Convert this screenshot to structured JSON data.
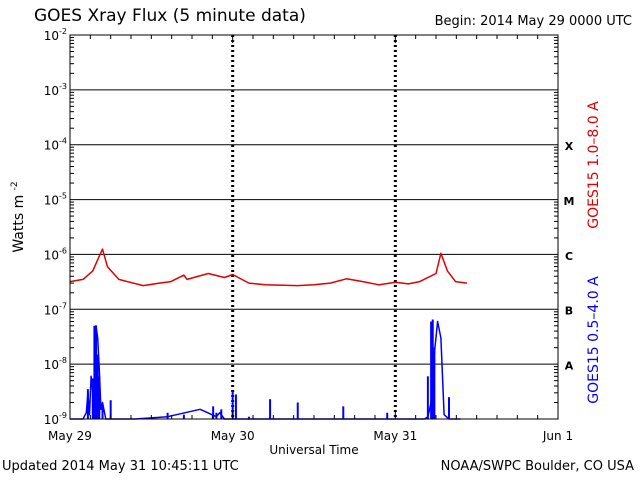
{
  "header": {
    "title": "GOES Xray Flux (5 minute data)",
    "begin": "Begin:  2014 May 29 0000 UTC"
  },
  "footer": {
    "updated": "Updated 2014 May 31 10:45:11 UTC",
    "source": "NOAA/SWPC Boulder, CO USA"
  },
  "chart_data": {
    "type": "line",
    "title": "GOES Xray Flux (5 minute data)",
    "xlabel": "Universal Time",
    "ylabel": "Watts m",
    "ylabel_superscript": "-2",
    "y_scale": "log",
    "ylim": [
      1e-09,
      0.01
    ],
    "y_ticks": [
      {
        "base": "10",
        "exp": "-2"
      },
      {
        "base": "10",
        "exp": "-3"
      },
      {
        "base": "10",
        "exp": "-4"
      },
      {
        "base": "10",
        "exp": "-5"
      },
      {
        "base": "10",
        "exp": "-6"
      },
      {
        "base": "10",
        "exp": "-7"
      },
      {
        "base": "10",
        "exp": "-8"
      },
      {
        "base": "10",
        "exp": "-9"
      }
    ],
    "x_range_days": [
      0,
      3
    ],
    "x_ticks": [
      "May 29",
      "May 30",
      "May 31",
      "Jun 1"
    ],
    "flare_classes": [
      "X",
      "M",
      "C",
      "B",
      "A"
    ],
    "grid": true,
    "colors": {
      "long": "#e00000",
      "short": "#0000ff",
      "grid": "#000000"
    },
    "series": [
      {
        "name": "GOES15 1.0–8.0 A",
        "color": "#e00000",
        "x": [
          0.0,
          0.08,
          0.14,
          0.17,
          0.2,
          0.23,
          0.3,
          0.45,
          0.55,
          0.62,
          0.7,
          0.72,
          0.85,
          0.95,
          1.0,
          1.1,
          1.2,
          1.4,
          1.5,
          1.6,
          1.7,
          1.8,
          1.9,
          2.0,
          2.08,
          2.15,
          2.25,
          2.28,
          2.32,
          2.37,
          2.44
        ],
        "y": [
          3.2e-07,
          3.5e-07,
          5e-07,
          8e-07,
          1.25e-06,
          6e-07,
          3.5e-07,
          2.7e-07,
          3e-07,
          3.2e-07,
          4.2e-07,
          3.5e-07,
          4.5e-07,
          3.8e-07,
          4.3e-07,
          3e-07,
          2.8e-07,
          2.7e-07,
          2.8e-07,
          3e-07,
          3.6e-07,
          3.2e-07,
          2.8e-07,
          3.1e-07,
          2.9e-07,
          3.2e-07,
          4.5e-07,
          1.05e-06,
          5e-07,
          3.2e-07,
          3e-07
        ]
      },
      {
        "name": "GOES15 0.5–4.0 A",
        "color": "#0000ff",
        "x": [
          0.0,
          0.05,
          0.08,
          0.1,
          0.11,
          0.12,
          0.13,
          0.15,
          0.16,
          0.17,
          0.18,
          0.19,
          0.2,
          0.22,
          0.25,
          0.3,
          0.4,
          0.6,
          0.8,
          0.9,
          0.92,
          0.95,
          1.05,
          1.15,
          1.3,
          1.5,
          1.7,
          1.95,
          2.05,
          2.1,
          2.18,
          2.2,
          2.22,
          2.24,
          2.26,
          2.28,
          2.3,
          2.33,
          2.36,
          2.37,
          2.38,
          2.4
        ],
        "y": [
          1e-09,
          1e-09,
          1e-09,
          1.3e-09,
          3e-09,
          1.2e-09,
          6e-09,
          1.5e-09,
          5e-08,
          3e-08,
          8e-09,
          1.5e-09,
          2e-09,
          1e-09,
          1e-09,
          1e-09,
          1e-09,
          1.1e-09,
          1.5e-09,
          1.1e-09,
          1.3e-09,
          1e-09,
          1e-09,
          1e-09,
          1e-09,
          1e-09,
          1e-09,
          1e-09,
          1e-09,
          1e-09,
          1e-09,
          1.1e-09,
          2e-09,
          1.6e-08,
          6e-08,
          3e-08,
          1.2e-09,
          1e-09,
          1e-09,
          1e-09,
          1e-09,
          1e-09
        ]
      }
    ],
    "spikes_short": [
      {
        "x": 0.11,
        "y": 3.5e-09
      },
      {
        "x": 0.14,
        "y": 5.5e-09
      },
      {
        "x": 0.15,
        "y": 5e-08
      },
      {
        "x": 0.16,
        "y": 5e-08
      },
      {
        "x": 0.17,
        "y": 1.5e-08
      },
      {
        "x": 0.18,
        "y": 6e-09
      },
      {
        "x": 0.2,
        "y": 1.8e-09
      },
      {
        "x": 0.25,
        "y": 2.2e-09
      },
      {
        "x": 0.6,
        "y": 1.3e-09
      },
      {
        "x": 0.7,
        "y": 1.2e-09
      },
      {
        "x": 0.88,
        "y": 1.7e-09
      },
      {
        "x": 0.9,
        "y": 1.3e-09
      },
      {
        "x": 0.93,
        "y": 1.5e-09
      },
      {
        "x": 1.02,
        "y": 2.8e-09
      },
      {
        "x": 1.0,
        "y": 3.2e-09
      },
      {
        "x": 1.1,
        "y": 1.1e-09
      },
      {
        "x": 1.23,
        "y": 2.3e-09
      },
      {
        "x": 1.4,
        "y": 2e-09
      },
      {
        "x": 1.68,
        "y": 1.7e-09
      },
      {
        "x": 1.95,
        "y": 1.3e-09
      },
      {
        "x": 2.2,
        "y": 6e-09
      },
      {
        "x": 2.22,
        "y": 6e-08
      },
      {
        "x": 2.23,
        "y": 6.5e-08
      },
      {
        "x": 2.24,
        "y": 2e-08
      },
      {
        "x": 2.33,
        "y": 2.5e-09
      }
    ]
  }
}
